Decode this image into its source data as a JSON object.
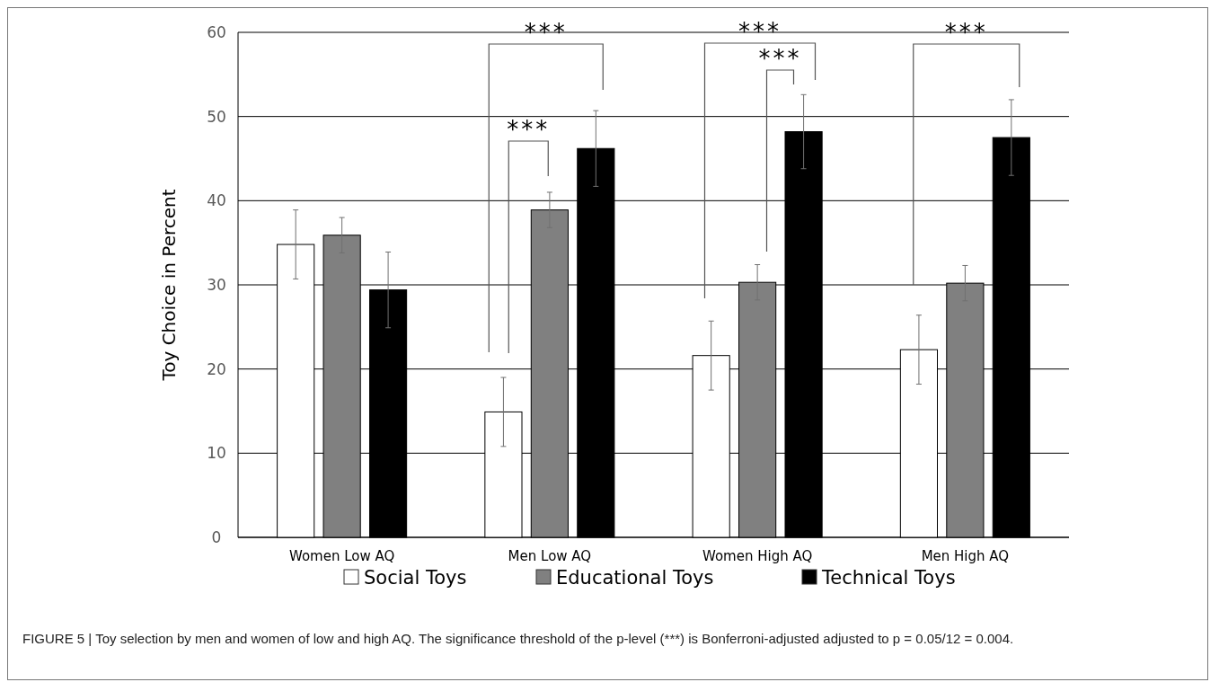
{
  "chart_data": {
    "type": "bar",
    "categories": [
      "Women Low AQ",
      "Men Low AQ",
      "Women High AQ",
      "Men High AQ"
    ],
    "ylabel": "Toy Choice in Percent",
    "ylim": [
      0,
      60
    ],
    "yticks": [
      0,
      10,
      20,
      30,
      40,
      50,
      60
    ],
    "grid": "y",
    "legend": "bottom",
    "series": [
      {
        "name": "Social Toys",
        "color": "#ffffff",
        "values": [
          34.8,
          14.9,
          21.6,
          22.3
        ],
        "errors": [
          4.1,
          4.1,
          4.1,
          4.1
        ]
      },
      {
        "name": "Educational Toys",
        "color": "#808080",
        "values": [
          35.9,
          38.9,
          30.3,
          30.2
        ],
        "errors": [
          2.1,
          2.1,
          2.1,
          2.1
        ]
      },
      {
        "name": "Technical Toys",
        "color": "#000000",
        "values": [
          29.4,
          46.2,
          48.2,
          47.5
        ],
        "errors": [
          4.5,
          4.5,
          4.4,
          4.5
        ]
      }
    ],
    "annotations": [
      "***",
      "***",
      "***",
      "***",
      "***",
      "FIGURE 5 | Toy selection by men and women of low and high AQ. The significance threshold of the p-level (***) is Bonferroni-adjusted adjusted to p = 0.05/12 = 0.004."
    ]
  }
}
